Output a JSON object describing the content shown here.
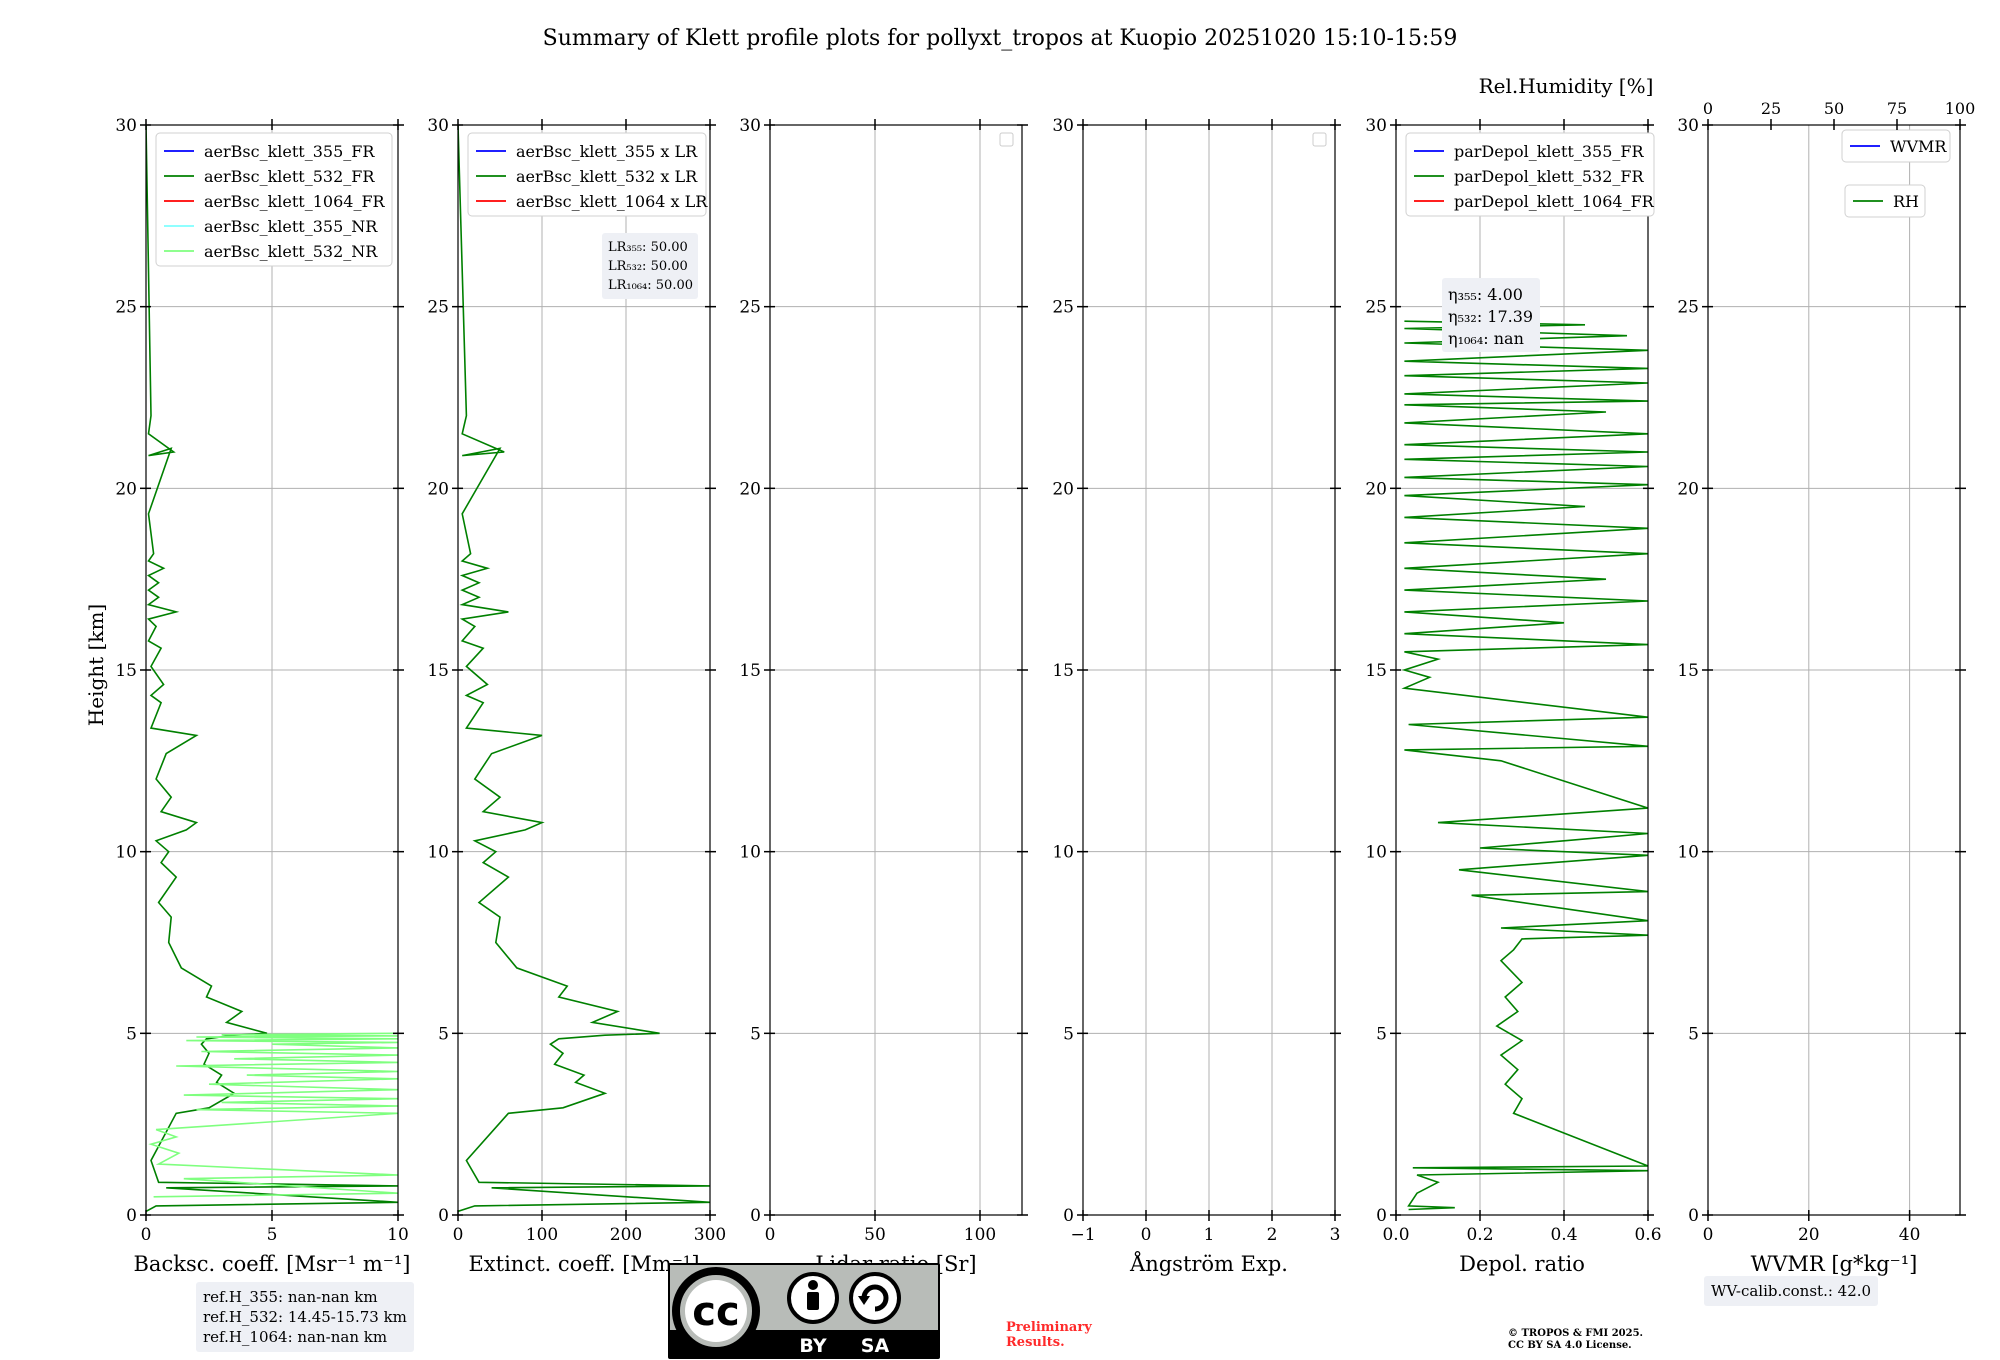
{
  "title": "Summary of Klett profile plots for pollyxt_tropos at Kuopio 20251020 15:10-15:59",
  "colors": {
    "blue": "#0000ff",
    "green": "#008000",
    "red": "#ff0000",
    "cyan": "#7fffff",
    "lightgreen": "#7fff7f",
    "grid": "#b0b0b0",
    "textbox": "#eef0f5"
  },
  "chart_data": [
    {
      "type": "line",
      "title": "",
      "xlabel": "Backsc. coeff. [Msr⁻¹ m⁻¹]",
      "ylabel": "Height [km]",
      "xlim": [
        0,
        10
      ],
      "ylim": [
        0,
        30
      ],
      "xticks": [
        "0",
        "5",
        "10"
      ],
      "yticks": [
        "0",
        "5",
        "10",
        "15",
        "20",
        "25",
        "30"
      ],
      "legend": [
        "aerBsc_klett_355_FR",
        "aerBsc_klett_532_FR",
        "aerBsc_klett_1064_FR",
        "aerBsc_klett_355_NR",
        "aerBsc_klett_532_NR"
      ],
      "legend_colors": [
        "#0000ff",
        "#008000",
        "#ff0000",
        "#7fffff",
        "#7fff7f"
      ],
      "series": [
        {
          "name": "aerBsc_klett_532_FR",
          "color": "#008000",
          "x": [
            0,
            0.4,
            10,
            0.8,
            10,
            0.5,
            0.2,
            1.2,
            2.5,
            3.5,
            2.8,
            3,
            2.3,
            2.5,
            2.2,
            2.4,
            3.5,
            4.8,
            3.2,
            3.8,
            2.4,
            2.6,
            1.4,
            0.9,
            1,
            0.5,
            1.2,
            0.6,
            0.9,
            0.4,
            1.6,
            2,
            0.6,
            1,
            0.4,
            0.8,
            2,
            0.2,
            0.6,
            0.2,
            0.7,
            0.2,
            0.6,
            0.1,
            0.4,
            0.1,
            1.2,
            0.1,
            0.5,
            0.1,
            0.5,
            0.1,
            0.7,
            0.1,
            0.3,
            0.1,
            1,
            0.1,
            1.1,
            0.1,
            0.2,
            0
          ],
          "y": [
            0.1,
            0.25,
            0.35,
            0.75,
            0.8,
            0.9,
            1.5,
            2.8,
            2.95,
            3.35,
            3.65,
            3.85,
            4.15,
            4.45,
            4.7,
            4.85,
            4.95,
            5.0,
            5.3,
            5.6,
            6,
            6.3,
            6.8,
            7.5,
            8.2,
            8.6,
            9.3,
            9.7,
            10,
            10.3,
            10.6,
            10.8,
            11.1,
            11.5,
            12,
            12.7,
            13.2,
            13.4,
            14.1,
            14.3,
            14.6,
            15.1,
            15.6,
            15.8,
            16.2,
            16.4,
            16.6,
            16.8,
            17.0,
            17.2,
            17.4,
            17.6,
            17.8,
            18.0,
            18.2,
            19.3,
            21.1,
            20.9,
            21.0,
            21.5,
            22,
            30
          ]
        },
        {
          "name": "aerBsc_klett_532_NR",
          "color": "#7fff7f",
          "x": [
            0.3,
            10,
            1.5,
            10,
            0.5,
            1.3,
            0.2,
            1.2,
            0.4,
            10,
            2,
            10,
            3,
            10,
            1.5,
            10,
            2.5,
            10,
            4,
            10,
            1.2,
            10,
            3.5,
            10,
            2.2,
            10,
            5,
            10,
            1.6,
            10,
            2,
            10,
            3,
            10
          ],
          "y": [
            0.5,
            0.6,
            1.0,
            1.1,
            1.4,
            1.7,
            1.95,
            2.15,
            2.35,
            2.8,
            2.9,
            3.0,
            3.1,
            3.2,
            3.3,
            3.45,
            3.6,
            3.75,
            3.85,
            3.95,
            4.1,
            4.2,
            4.3,
            4.4,
            4.5,
            4.6,
            4.7,
            4.75,
            4.8,
            4.85,
            4.9,
            4.93,
            4.96,
            5.0
          ]
        }
      ]
    },
    {
      "type": "line",
      "title": "",
      "xlabel": "Extinct. coeff. [Mm⁻¹]",
      "ylabel": "",
      "xlim": [
        0,
        300
      ],
      "ylim": [
        0,
        30
      ],
      "xticks": [
        "0",
        "100",
        "200",
        "300"
      ],
      "yticks": [
        "0",
        "5",
        "10",
        "15",
        "20",
        "25",
        "30"
      ],
      "legend": [
        "aerBsc_klett_355 x LR",
        "aerBsc_klett_532 x LR",
        "aerBsc_klett_1064 x LR"
      ],
      "legend_colors": [
        "#0000ff",
        "#008000",
        "#ff0000"
      ],
      "lr_box": [
        "LR₃₅₅: 50.00",
        "LR₅₃₂: 50.00",
        "LR₁₀₆₄: 50.00"
      ],
      "series": [
        {
          "name": "aerBsc_klett_532 x LR",
          "color": "#008000",
          "x": [
            0,
            20,
            300,
            40,
            300,
            25,
            10,
            60,
            125,
            175,
            140,
            150,
            115,
            125,
            110,
            120,
            175,
            240,
            160,
            190,
            120,
            130,
            70,
            45,
            50,
            25,
            60,
            30,
            45,
            20,
            80,
            100,
            30,
            50,
            20,
            40,
            100,
            10,
            30,
            10,
            35,
            10,
            30,
            5,
            20,
            5,
            60,
            5,
            25,
            5,
            25,
            5,
            35,
            5,
            15,
            5,
            50,
            5,
            55,
            5,
            10,
            0
          ],
          "y": [
            0.1,
            0.25,
            0.35,
            0.75,
            0.8,
            0.9,
            1.5,
            2.8,
            2.95,
            3.35,
            3.65,
            3.85,
            4.15,
            4.45,
            4.7,
            4.85,
            4.95,
            5.0,
            5.3,
            5.6,
            6,
            6.3,
            6.8,
            7.5,
            8.2,
            8.6,
            9.3,
            9.7,
            10,
            10.3,
            10.6,
            10.8,
            11.1,
            11.5,
            12,
            12.7,
            13.2,
            13.4,
            14.1,
            14.3,
            14.6,
            15.1,
            15.6,
            15.8,
            16.2,
            16.4,
            16.6,
            16.8,
            17.0,
            17.2,
            17.4,
            17.6,
            17.8,
            18.0,
            18.2,
            19.3,
            21.1,
            20.9,
            21.0,
            21.5,
            22,
            30
          ]
        }
      ]
    },
    {
      "type": "line",
      "title": "",
      "xlabel": "Lidar ratio [Sr]",
      "ylabel": "",
      "xlim": [
        0,
        120
      ],
      "ylim": [
        0,
        30
      ],
      "xticks": [
        "0",
        "50",
        "100"
      ],
      "yticks": [
        "0",
        "5",
        "10",
        "15",
        "20",
        "25",
        "30"
      ],
      "legend": [],
      "series": []
    },
    {
      "type": "line",
      "title": "",
      "xlabel": "Ångström Exp.",
      "ylabel": "",
      "xlim": [
        -1,
        3
      ],
      "ylim": [
        0,
        30
      ],
      "xticks": [
        "−1",
        "0",
        "1",
        "2",
        "3"
      ],
      "yticks": [
        "0",
        "5",
        "10",
        "15",
        "20",
        "25",
        "30"
      ],
      "legend": [],
      "series": []
    },
    {
      "type": "line",
      "title": "",
      "xlabel": "Depol. ratio",
      "ylabel": "",
      "xlim": [
        0,
        0.6
      ],
      "ylim": [
        0,
        30
      ],
      "xticks": [
        "0.0",
        "0.2",
        "0.4",
        "0.6"
      ],
      "yticks": [
        "0",
        "5",
        "10",
        "15",
        "20",
        "25",
        "30"
      ],
      "legend": [
        "parDepol_klett_355_FR",
        "parDepol_klett_532_FR",
        "parDepol_klett_1064_FR"
      ],
      "legend_colors": [
        "#0000ff",
        "#008000",
        "#ff0000"
      ],
      "eta_box": [
        "η₃₅₅: 4.00",
        "η₅₃₂: 17.39",
        "η₁₀₆₄: nan"
      ],
      "series": [
        {
          "name": "parDepol_klett_532_FR",
          "color": "#008000",
          "x": [
            0.03,
            0.14,
            0.03,
            0.05,
            0.1,
            0.05,
            0.6,
            0.04,
            0.6,
            0.28,
            0.3,
            0.26,
            0.29,
            0.25,
            0.3,
            0.24,
            0.29,
            0.26,
            0.3,
            0.25,
            0.28,
            0.3,
            0.6,
            0.25,
            0.6,
            0.18,
            0.6,
            0.15,
            0.6,
            0.2,
            0.4,
            0.6,
            0.1,
            0.6,
            0.25,
            0.02,
            0.6,
            0.03,
            0.6,
            0.02,
            0.08,
            0.02,
            0.1,
            0.02,
            0.6,
            0.02,
            0.4,
            0.02,
            0.6,
            0.02,
            0.5,
            0.02,
            0.6,
            0.02,
            0.6,
            0.02,
            0.45,
            0.02,
            0.6,
            0.02,
            0.6,
            0.02,
            0.6,
            0.02,
            0.6,
            0.02,
            0.5,
            0.02,
            0.6,
            0.02,
            0.6,
            0.02,
            0.6,
            0.02,
            0.6,
            0.02,
            0.55,
            0.02,
            0.45,
            0.02
          ],
          "y": [
            0.15,
            0.2,
            0.25,
            0.6,
            0.9,
            1.1,
            1.22,
            1.3,
            1.35,
            2.8,
            3.2,
            3.6,
            4.0,
            4.4,
            4.8,
            5.2,
            5.6,
            6.0,
            6.4,
            7.0,
            7.3,
            7.6,
            7.7,
            7.9,
            8.1,
            8.8,
            8.9,
            9.5,
            9.9,
            10.1,
            10.3,
            10.5,
            10.8,
            11.2,
            12.5,
            12.8,
            12.9,
            13.5,
            13.7,
            14.5,
            14.8,
            15.0,
            15.3,
            15.5,
            15.7,
            16.0,
            16.3,
            16.6,
            16.9,
            17.2,
            17.5,
            17.8,
            18.2,
            18.5,
            18.9,
            19.2,
            19.5,
            19.8,
            20.1,
            20.3,
            20.6,
            20.8,
            21.0,
            21.2,
            21.5,
            21.8,
            22.1,
            22.3,
            22.4,
            22.6,
            22.9,
            23.1,
            23.3,
            23.5,
            23.8,
            24.0,
            24.2,
            24.4,
            24.5,
            24.6
          ]
        }
      ]
    },
    {
      "type": "line",
      "title": "",
      "xlabel": "WVMR [g*kg⁻¹]",
      "ylabel": "",
      "xlim": [
        0,
        50
      ],
      "ylim": [
        0,
        30
      ],
      "xticks": [
        "0",
        "20",
        "40"
      ],
      "yticks": [
        "0",
        "5",
        "10",
        "15",
        "20",
        "25",
        "30"
      ],
      "secondary_xlabel": "Rel.Humidity [%]",
      "secondary_xlim": [
        0,
        100
      ],
      "secondary_xticks": [
        "0",
        "25",
        "50",
        "75",
        "100"
      ],
      "legend": [
        "WVMR",
        "RH"
      ],
      "legend_colors": [
        "#0000ff",
        "#008000"
      ],
      "series": []
    }
  ],
  "ref_heights": [
    "ref.H_355: nan-nan km",
    "ref.H_532: 14.45-15.73 km",
    "ref.H_1064: nan-nan km"
  ],
  "wv_calib": "WV-calib.const.: 42.0",
  "license_badge": {
    "left_label": "BY",
    "right_label": "SA",
    "cc_text": "cc"
  },
  "preliminary": [
    "Preliminary",
    "Results."
  ],
  "copyright": [
    "© TROPOS & FMI 2025.",
    "CC BY SA 4.0 License."
  ]
}
